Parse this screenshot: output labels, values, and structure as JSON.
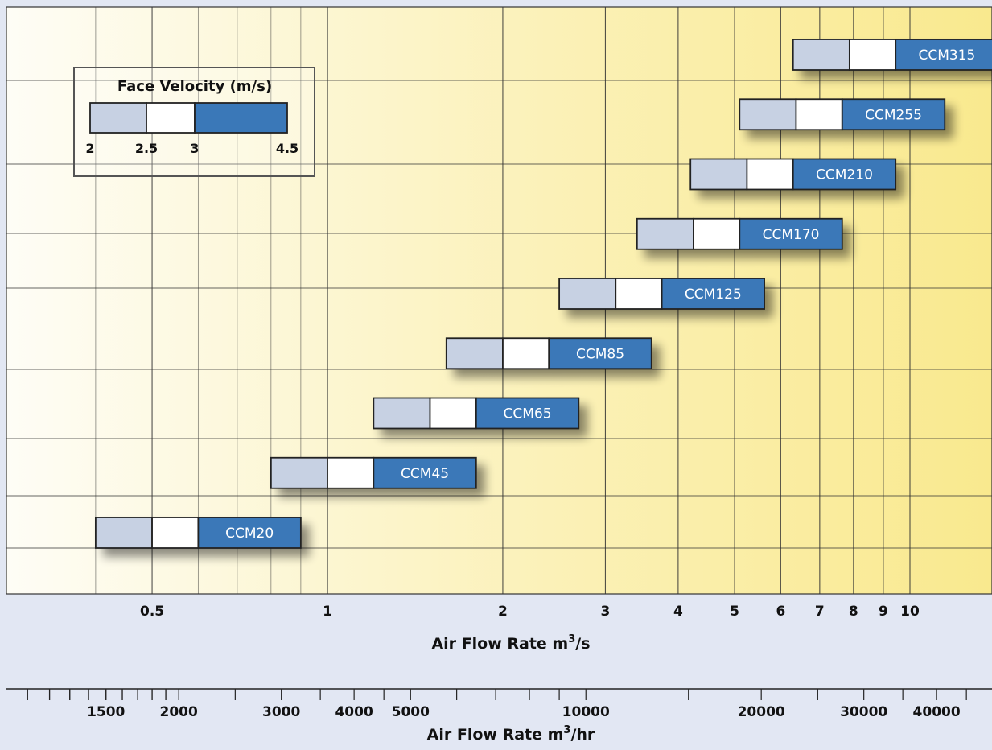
{
  "chart_data": {
    "type": "bar",
    "subtype": "horizontal-range",
    "x_scale": "log",
    "xlim": [
      0.35,
      15
    ],
    "xlabel": "Air Flow Rate m³/s",
    "xlabel_base": "Air Flow Rate m",
    "xlabel_unit": "/s",
    "x_ticks": [
      {
        "value": 0.5,
        "label": "0.5"
      },
      {
        "value": 1,
        "label": "1"
      },
      {
        "value": 2,
        "label": "2"
      },
      {
        "value": 3,
        "label": "3"
      },
      {
        "value": 4,
        "label": "4"
      },
      {
        "value": 5,
        "label": "5"
      },
      {
        "value": 6,
        "label": "6"
      },
      {
        "value": 7,
        "label": "7"
      },
      {
        "value": 8,
        "label": "8"
      },
      {
        "value": 9,
        "label": "9"
      },
      {
        "value": 10,
        "label": "10"
      }
    ],
    "secondary_x_axis": {
      "xlabel": "Air Flow Rate m³/hr",
      "xlabel_base": "Air Flow Rate m",
      "xlabel_unit": "/hr",
      "tick_labels": [
        {
          "value": 1500,
          "label": "1500"
        },
        {
          "value": 2000,
          "label": "2000"
        },
        {
          "value": 3000,
          "label": "3000"
        },
        {
          "value": 4000,
          "label": "4000"
        },
        {
          "value": 5000,
          "label": "5000"
        },
        {
          "value": 10000,
          "label": "10000"
        },
        {
          "value": 20000,
          "label": "20000"
        },
        {
          "value": 30000,
          "label": "30000"
        },
        {
          "value": 40000,
          "label": "40000"
        }
      ],
      "minor_ticks": [
        1100,
        1200,
        1300,
        1400,
        1600,
        1700,
        1800,
        1900,
        2500,
        3500,
        4500,
        6000,
        7000,
        8000,
        9000,
        15000,
        25000,
        35000,
        45000
      ]
    },
    "legend": {
      "title": "Face Velocity (m/s)",
      "placement": "top-left",
      "velocity_bands": [
        2,
        2.5,
        3,
        4.5
      ],
      "tick_labels": [
        "2",
        "2.5",
        "3",
        "4.5"
      ],
      "segment_colors": [
        "#c7d1e3",
        "#ffffff",
        "#3a78b8"
      ]
    },
    "series": [
      {
        "name": "CCM20",
        "x": [
          0.4,
          0.5,
          0.6,
          0.9
        ]
      },
      {
        "name": "CCM45",
        "x": [
          0.8,
          1.0,
          1.2,
          1.8
        ]
      },
      {
        "name": "CCM65",
        "x": [
          1.2,
          1.5,
          1.8,
          2.7
        ]
      },
      {
        "name": "CCM85",
        "x": [
          1.6,
          2.0,
          2.4,
          3.6
        ]
      },
      {
        "name": "CCM125",
        "x": [
          2.5,
          3.125,
          3.75,
          5.625
        ]
      },
      {
        "name": "CCM170",
        "x": [
          3.4,
          4.25,
          5.1,
          7.65
        ]
      },
      {
        "name": "CCM210",
        "x": [
          4.2,
          5.25,
          6.3,
          9.45
        ]
      },
      {
        "name": "CCM255",
        "x": [
          5.1,
          6.375,
          7.65,
          11.475
        ]
      },
      {
        "name": "CCM315",
        "x": [
          6.3,
          7.875,
          9.45,
          14.175
        ]
      }
    ],
    "colors": {
      "band_low": "#c7d1e3",
      "band_mid": "#ffffff",
      "band_high": "#3a78b8",
      "plot_left": "#fefdf6",
      "plot_right": "#f9e98e",
      "page_background": "#e2e7f3"
    }
  }
}
